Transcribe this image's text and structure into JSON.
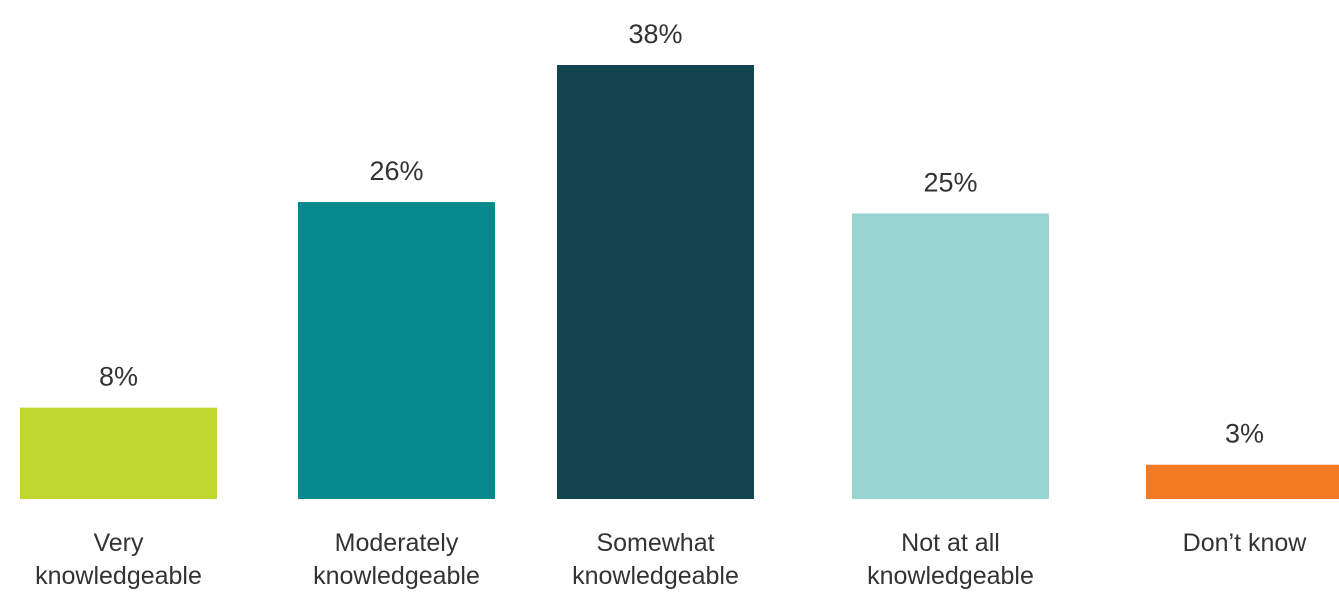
{
  "chart_data": {
    "type": "bar",
    "categories": [
      "Very\nknowledgeable",
      "Moderately\nknowledgeable",
      "Somewhat\nknowledgeable",
      "Not at all\nknowledgeable",
      "Don’t know"
    ],
    "values": [
      8,
      26,
      38,
      25,
      3
    ],
    "value_labels": [
      "8%",
      "26%",
      "38%",
      "25%",
      "3%"
    ],
    "colors": [
      "#c0d72f",
      "#06898c",
      "#124550",
      "#97d5ce",
      "#f37a22"
    ],
    "title": "",
    "xlabel": "",
    "ylabel": "",
    "ylim": [
      0,
      38
    ],
    "grid": false,
    "legend": "none"
  }
}
